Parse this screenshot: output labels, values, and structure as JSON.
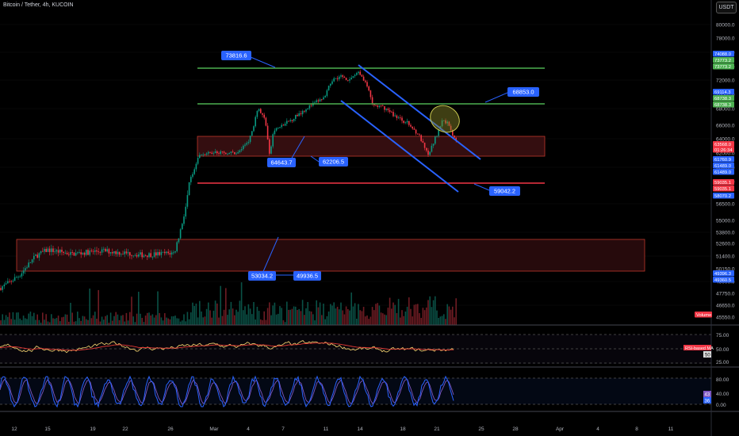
{
  "header": {
    "title": "Bitcoin / Tether, 4h, KUCOIN",
    "currency_button": "USDT"
  },
  "colors": {
    "bg": "#000000",
    "green_line": "#4caf50",
    "red_line": "#f23645",
    "trend_blue": "#2962ff",
    "label_blue": "#2962ff",
    "up_candle": "#089981",
    "down_candle": "#f23645",
    "rsi_line": "#e6c76a",
    "rsi_ma": "#e53935",
    "stoch_k": "#2962ff",
    "stoch_d": "#7e57c2"
  },
  "price_axis": {
    "ticks": [
      "82000.0",
      "80000.0",
      "78000.0",
      "76000.0",
      "74000.0",
      "72000.0",
      "70000.0",
      "68000.0",
      "66000.0",
      "64000.0",
      "62000.0",
      "60000.0",
      "58000.0",
      "56500.0",
      "55000.0",
      "53800.0",
      "52600.0",
      "51400.0",
      "50150.0",
      "49000.0",
      "47750.0",
      "46650.0",
      "45550.0"
    ],
    "badges": [
      {
        "text": "74088.0",
        "bg": "#2962ff",
        "fg": "#ffffff"
      },
      {
        "text": "73773.2",
        "bg": "#4caf50",
        "fg": "#ffffff"
      },
      {
        "text": "73773.2",
        "bg": "#4caf50",
        "fg": "#ffffff"
      },
      {
        "text": "69114.3",
        "bg": "#2962ff",
        "fg": "#ffffff"
      },
      {
        "text": "68738.3",
        "bg": "#4caf50",
        "fg": "#ffffff"
      },
      {
        "text": "68738.3",
        "bg": "#4caf50",
        "fg": "#ffffff"
      },
      {
        "text": "63568.0",
        "bg": "#f23645",
        "fg": "#ffffff"
      },
      {
        "text": "01:26:34",
        "bg": "#f23645",
        "fg": "#ffffff"
      },
      {
        "text": "61760.9",
        "bg": "#2962ff",
        "fg": "#ffffff"
      },
      {
        "text": "61489.0",
        "bg": "#2962ff",
        "fg": "#ffffff"
      },
      {
        "text": "61489.0",
        "bg": "#2962ff",
        "fg": "#ffffff"
      },
      {
        "text": "59035.1",
        "bg": "#f23645",
        "fg": "#ffffff"
      },
      {
        "text": "59035.1",
        "bg": "#f23645",
        "fg": "#ffffff"
      },
      {
        "text": "58070.2",
        "bg": "#2962ff",
        "fg": "#ffffff"
      },
      {
        "text": "49396.3",
        "bg": "#2962ff",
        "fg": "#ffffff"
      },
      {
        "text": "49360.5",
        "bg": "#2962ff",
        "fg": "#ffffff"
      },
      {
        "text": "Volume",
        "bg": "#f23645",
        "fg": "#ffffff"
      }
    ]
  },
  "annotations": [
    {
      "text": "73816.6"
    },
    {
      "text": "68853.0"
    },
    {
      "text": "64643.7"
    },
    {
      "text": "62206.5"
    },
    {
      "text": "59042.2"
    },
    {
      "text": "53034.2"
    },
    {
      "text": "49936.5"
    }
  ],
  "rsi_pane": {
    "ticks": [
      "75.00",
      "50.00",
      "25.00"
    ],
    "badge_label": "RSI-based MA",
    "badge_value": "50"
  },
  "stoch_pane": {
    "ticks": [
      "80.00",
      "40.00",
      "0.00"
    ],
    "badge_a": "43",
    "badge_b": "36"
  },
  "time_axis": {
    "labels": [
      "12",
      "15",
      "19",
      "22",
      "26",
      "Mar",
      "4",
      "7",
      "11",
      "14",
      "18",
      "21",
      "25",
      "28",
      "Apr",
      "4",
      "8",
      "11"
    ]
  }
}
